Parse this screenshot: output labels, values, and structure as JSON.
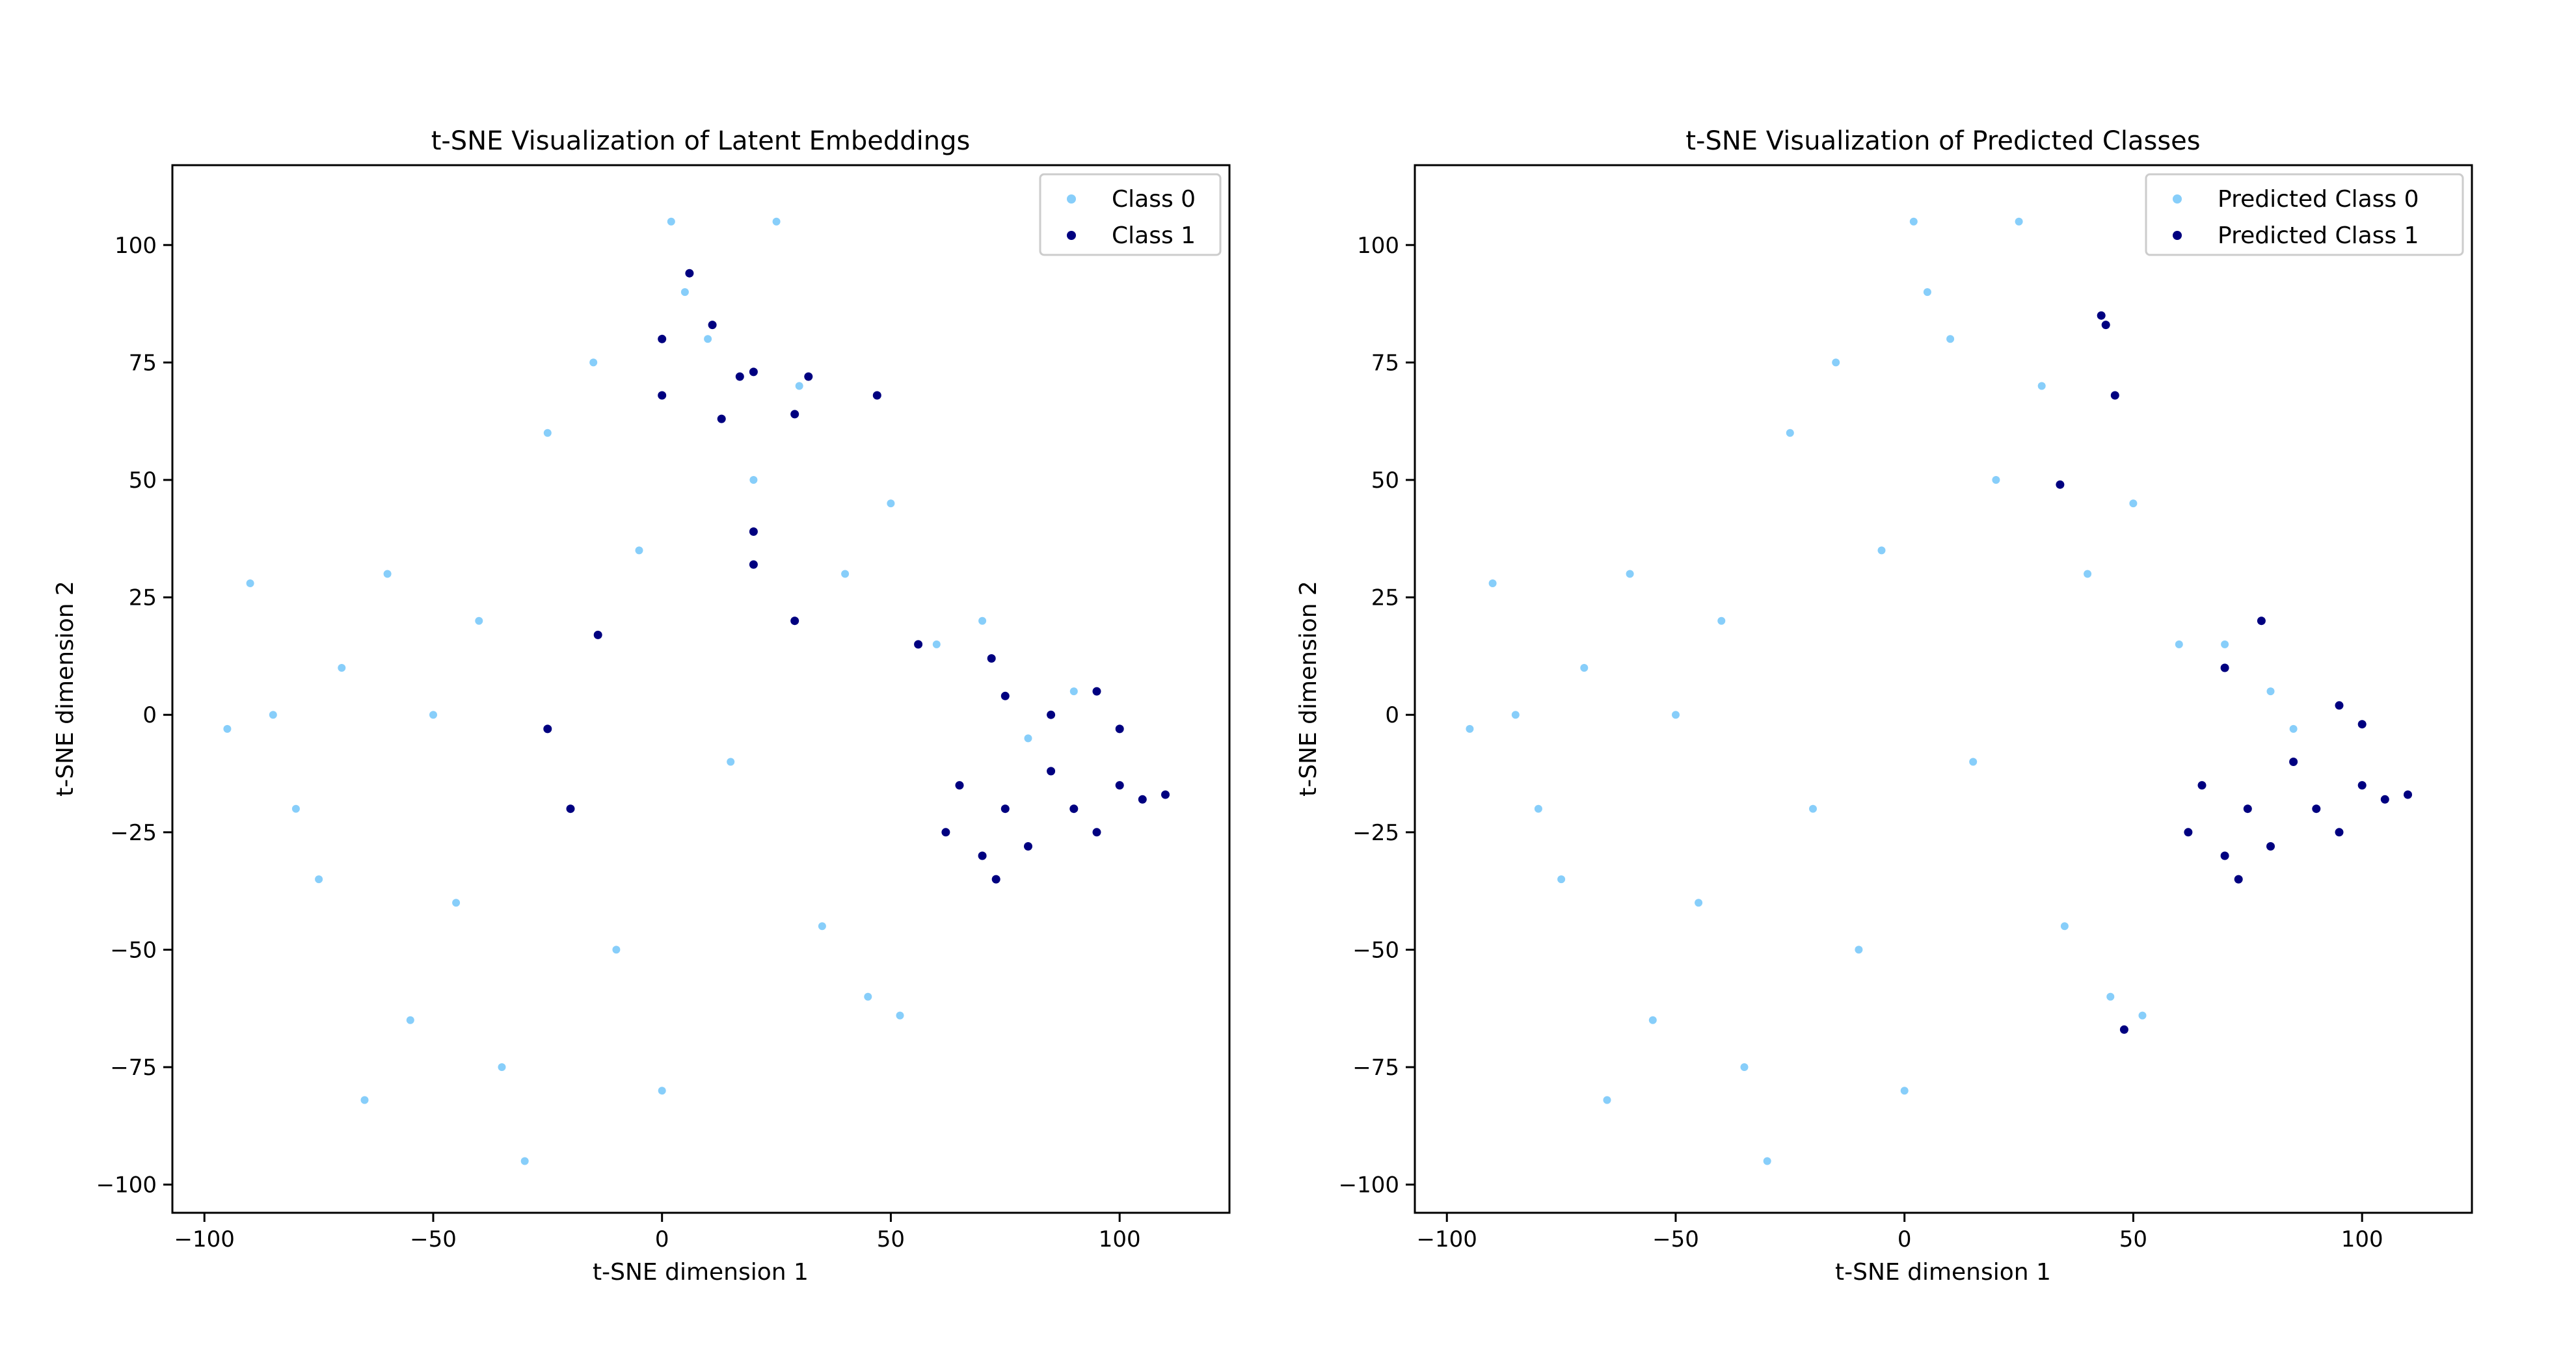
{
  "colors": {
    "class0": "#87CEFA",
    "class1": "#000080"
  },
  "chart_data": [
    {
      "type": "scatter",
      "title": "t-SNE Visualization of Latent Embeddings",
      "xlabel": "t-SNE dimension 1",
      "ylabel": "t-SNE dimension 2",
      "xlim": [
        -107,
        124
      ],
      "ylim": [
        -106,
        117
      ],
      "xticks": [
        -100,
        -50,
        0,
        50,
        100
      ],
      "yticks": [
        -100,
        -75,
        -50,
        -25,
        0,
        25,
        50,
        75,
        100
      ],
      "xtick_labels": [
        "−100",
        "−50",
        "0",
        "50",
        "100"
      ],
      "ytick_labels": [
        "−100",
        "−75",
        "−50",
        "−25",
        "0",
        "25",
        "50",
        "75",
        "100"
      ],
      "legend_position": "top-right",
      "series": [
        {
          "name": "Class 0",
          "color": "#87CEFA",
          "note": "dense cloud of several thousand points",
          "points": [
            [
              -95,
              -3
            ],
            [
              -90,
              28
            ],
            [
              -85,
              0
            ],
            [
              -80,
              -20
            ],
            [
              -75,
              -35
            ],
            [
              -70,
              10
            ],
            [
              -65,
              -82
            ],
            [
              -60,
              30
            ],
            [
              -55,
              -65
            ],
            [
              -50,
              0
            ],
            [
              -45,
              -40
            ],
            [
              -40,
              20
            ],
            [
              -35,
              -75
            ],
            [
              -30,
              -95
            ],
            [
              -25,
              60
            ],
            [
              -20,
              -20
            ],
            [
              -15,
              75
            ],
            [
              -10,
              -50
            ],
            [
              -5,
              35
            ],
            [
              0,
              -80
            ],
            [
              2,
              105
            ],
            [
              5,
              90
            ],
            [
              10,
              80
            ],
            [
              15,
              -10
            ],
            [
              20,
              50
            ],
            [
              25,
              105
            ],
            [
              30,
              70
            ],
            [
              35,
              -45
            ],
            [
              40,
              30
            ],
            [
              45,
              -60
            ],
            [
              50,
              45
            ],
            [
              52,
              -64
            ],
            [
              60,
              15
            ],
            [
              70,
              20
            ],
            [
              80,
              -5
            ],
            [
              90,
              5
            ]
          ]
        },
        {
          "name": "Class 1",
          "color": "#000080",
          "note": "sparse points concentrated in the right cluster",
          "points": [
            [
              6,
              94
            ],
            [
              0,
              80
            ],
            [
              11,
              83
            ],
            [
              0,
              68
            ],
            [
              17,
              72
            ],
            [
              13,
              63
            ],
            [
              20,
              73
            ],
            [
              32,
              72
            ],
            [
              29,
              64
            ],
            [
              47,
              68
            ],
            [
              20,
              39
            ],
            [
              20,
              32
            ],
            [
              29,
              20
            ],
            [
              -14,
              17
            ],
            [
              -25,
              -3
            ],
            [
              -20,
              -20
            ],
            [
              56,
              15
            ],
            [
              72,
              12
            ],
            [
              75,
              4
            ],
            [
              85,
              0
            ],
            [
              95,
              5
            ],
            [
              100,
              -3
            ],
            [
              65,
              -15
            ],
            [
              75,
              -20
            ],
            [
              85,
              -12
            ],
            [
              95,
              -25
            ],
            [
              105,
              -18
            ],
            [
              110,
              -17
            ],
            [
              70,
              -30
            ],
            [
              80,
              -28
            ],
            [
              90,
              -20
            ],
            [
              100,
              -15
            ],
            [
              62,
              -25
            ],
            [
              73,
              -35
            ]
          ]
        }
      ]
    },
    {
      "type": "scatter",
      "title": "t-SNE Visualization of Predicted Classes",
      "xlabel": "t-SNE dimension 1",
      "ylabel": "t-SNE dimension 2",
      "xlim": [
        -107,
        124
      ],
      "ylim": [
        -106,
        117
      ],
      "xticks": [
        -100,
        -50,
        0,
        50,
        100
      ],
      "yticks": [
        -100,
        -75,
        -50,
        -25,
        0,
        25,
        50,
        75,
        100
      ],
      "xtick_labels": [
        "−100",
        "−50",
        "0",
        "50",
        "100"
      ],
      "ytick_labels": [
        "−100",
        "−75",
        "−50",
        "−25",
        "0",
        "25",
        "50",
        "75",
        "100"
      ],
      "legend_position": "top-right",
      "series": [
        {
          "name": "Predicted Class 0",
          "color": "#87CEFA",
          "note": "dense cloud of several thousand points",
          "points": [
            [
              -95,
              -3
            ],
            [
              -90,
              28
            ],
            [
              -85,
              0
            ],
            [
              -80,
              -20
            ],
            [
              -75,
              -35
            ],
            [
              -70,
              10
            ],
            [
              -65,
              -82
            ],
            [
              -60,
              30
            ],
            [
              -55,
              -65
            ],
            [
              -50,
              0
            ],
            [
              -45,
              -40
            ],
            [
              -40,
              20
            ],
            [
              -35,
              -75
            ],
            [
              -30,
              -95
            ],
            [
              -25,
              60
            ],
            [
              -20,
              -20
            ],
            [
              -15,
              75
            ],
            [
              -10,
              -50
            ],
            [
              -5,
              35
            ],
            [
              0,
              -80
            ],
            [
              2,
              105
            ],
            [
              5,
              90
            ],
            [
              10,
              80
            ],
            [
              15,
              -10
            ],
            [
              20,
              50
            ],
            [
              25,
              105
            ],
            [
              30,
              70
            ],
            [
              35,
              -45
            ],
            [
              40,
              30
            ],
            [
              45,
              -60
            ],
            [
              50,
              45
            ],
            [
              52,
              -64
            ],
            [
              60,
              15
            ],
            [
              70,
              15
            ],
            [
              80,
              5
            ],
            [
              85,
              -3
            ]
          ]
        },
        {
          "name": "Predicted Class 1",
          "color": "#000080",
          "note": "dense right cluster plus a few outliers",
          "points": [
            [
              43,
              85
            ],
            [
              44,
              83
            ],
            [
              46,
              68
            ],
            [
              34,
              49
            ],
            [
              48,
              -67
            ],
            [
              78,
              20
            ],
            [
              70,
              10
            ],
            [
              95,
              2
            ],
            [
              100,
              -2
            ],
            [
              65,
              -15
            ],
            [
              75,
              -20
            ],
            [
              85,
              -10
            ],
            [
              95,
              -25
            ],
            [
              105,
              -18
            ],
            [
              110,
              -17
            ],
            [
              70,
              -30
            ],
            [
              80,
              -28
            ],
            [
              90,
              -20
            ],
            [
              100,
              -15
            ],
            [
              62,
              -25
            ],
            [
              73,
              -35
            ]
          ]
        }
      ]
    }
  ]
}
